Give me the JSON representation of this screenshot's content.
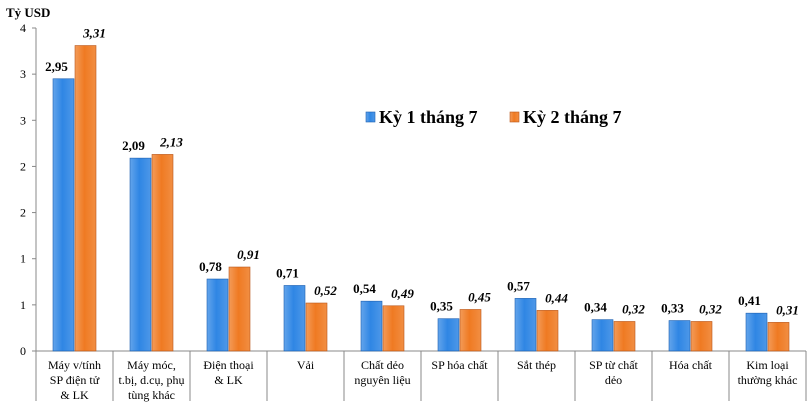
{
  "chart_data": {
    "type": "bar",
    "ylabel": "Tỷ USD",
    "yticks": [
      "0",
      "1",
      "1",
      "2",
      "2",
      "3",
      "3",
      "4"
    ],
    "categories": [
      [
        "Máy v/tính",
        "SP điện tử",
        "& LK"
      ],
      [
        "Máy móc,",
        "t.bị, d.cụ, phụ",
        "tùng khác"
      ],
      [
        "Điện thoại",
        "& LK"
      ],
      [
        "Vải"
      ],
      [
        "Chất dẻo",
        "nguyên liệu"
      ],
      [
        "SP hóa chất"
      ],
      [
        "Sắt thép"
      ],
      [
        "SP từ chất",
        "dẻo"
      ],
      [
        "Hóa chất"
      ],
      [
        "Kim loại",
        "thường khác"
      ]
    ],
    "series": [
      {
        "name": "Kỳ 1 tháng 7",
        "color": "#2f86e4",
        "values": [
          2.95,
          2.09,
          0.78,
          0.71,
          0.54,
          0.35,
          0.57,
          0.34,
          0.33,
          0.41
        ],
        "labels": [
          "2,95",
          "2,09",
          "0,78",
          "0,71",
          "0,54",
          "0,35",
          "0,57",
          "0,34",
          "0,33",
          "0,41"
        ]
      },
      {
        "name": "Kỳ 2 tháng 7",
        "color": "#ef7a22",
        "values": [
          3.31,
          2.13,
          0.91,
          0.52,
          0.49,
          0.45,
          0.44,
          0.32,
          0.32,
          0.31
        ],
        "labels": [
          "3,31",
          "2,13",
          "0,91",
          "0,52",
          "0,49",
          "0,45",
          "0,44",
          "0,32",
          "0,32",
          "0,31"
        ]
      }
    ],
    "ylim": [
      0,
      3.5
    ],
    "legend": "center-right",
    "grid": false
  }
}
